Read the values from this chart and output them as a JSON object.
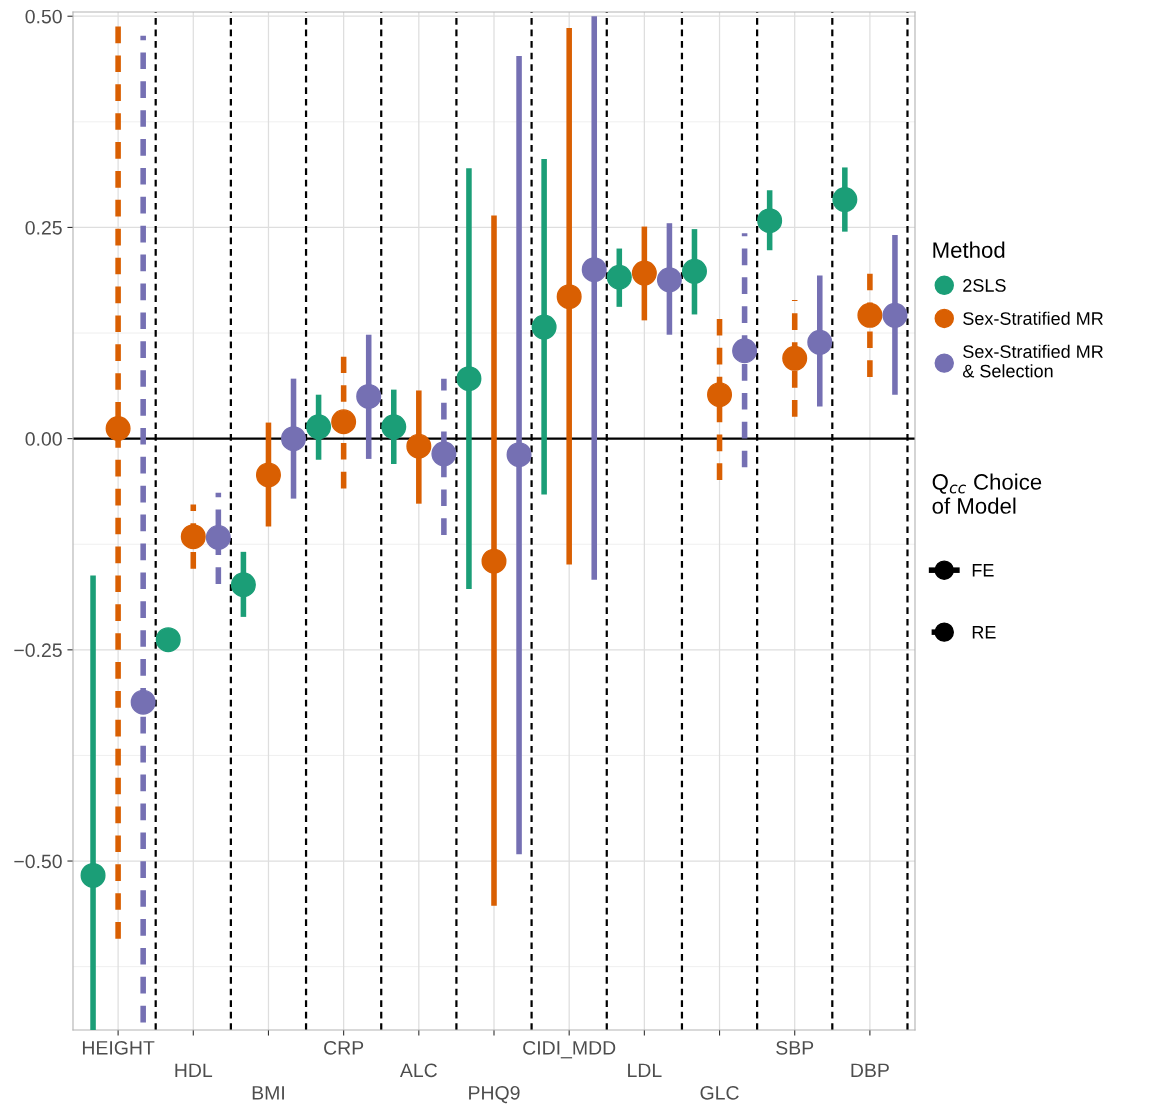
{
  "chart_data": {
    "type": "scatter",
    "categories": [
      "HEIGHT",
      "HDL",
      "BMI",
      "CRP",
      "ALC",
      "PHQ9",
      "CIDI_MDD",
      "LDL",
      "GLC",
      "SBP",
      "DBP"
    ],
    "ylim": [
      -0.7,
      0.505
    ],
    "yticks": [
      {
        "value": -0.5,
        "label": "−0.50"
      },
      {
        "value": -0.25,
        "label": "−0.25"
      },
      {
        "value": 0,
        "label": "0.00"
      },
      {
        "value": 0.25,
        "label": "0.25"
      },
      {
        "value": 0.5,
        "label": "0.50"
      }
    ],
    "grid": true,
    "legend": "right",
    "legend_title": "Method",
    "marker": "circle",
    "series": [
      {
        "name": "2SLS",
        "color": "#1b9e77",
        "values": [
          -0.517,
          -0.238,
          -0.173,
          0.014,
          0.014,
          0.071,
          0.132,
          0.191,
          0.198,
          0.258,
          0.283
        ],
        "errors": [
          [
            -0.7,
            -0.162
          ],
          null,
          [
            -0.211,
            -0.134
          ],
          [
            -0.025,
            0.052
          ],
          [
            -0.03,
            0.058
          ],
          [
            -0.178,
            0.32
          ],
          [
            -0.066,
            0.331
          ],
          [
            0.156,
            0.225
          ],
          [
            0.147,
            0.248
          ],
          [
            0.223,
            0.294
          ],
          [
            0.245,
            0.321
          ]
        ],
        "line_style": [
          "solid",
          "solid",
          "solid",
          "solid",
          "solid",
          "solid",
          "solid",
          "solid",
          "solid",
          "solid",
          "solid"
        ]
      },
      {
        "name": "Sex-Stratified MR",
        "color": "#d95f02",
        "values": [
          0.012,
          -0.116,
          -0.043,
          0.02,
          -0.009,
          -0.145,
          0.168,
          0.196,
          0.052,
          0.095,
          0.146
        ],
        "errors": [
          [
            -0.592,
            0.5
          ],
          [
            -0.154,
            -0.078
          ],
          [
            -0.104,
            0.019
          ],
          [
            -0.059,
            0.097
          ],
          [
            -0.077,
            0.057
          ],
          [
            -0.553,
            0.264
          ],
          [
            -0.149,
            0.486
          ],
          [
            0.14,
            0.251
          ],
          [
            -0.049,
            0.153
          ],
          [
            0.026,
            0.164
          ],
          [
            0.073,
            0.209
          ]
        ],
        "line_style": [
          "dashed",
          "dashed",
          "solid",
          "dashed",
          "solid",
          "solid",
          "solid",
          "solid",
          "dashed",
          "dashed",
          "dashed"
        ]
      },
      {
        "name": "Sex-Stratified MR\n& Selection",
        "color": "#7570b3",
        "values": [
          -0.312,
          -0.117,
          0.0,
          0.05,
          -0.018,
          -0.019,
          0.2,
          0.188,
          0.104,
          0.114,
          0.146
        ],
        "errors": [
          [
            -0.691,
            0.477
          ],
          [
            -0.172,
            -0.064
          ],
          [
            -0.071,
            0.071
          ],
          [
            -0.024,
            0.123
          ],
          [
            -0.114,
            0.071
          ],
          [
            -0.492,
            0.453
          ],
          [
            -0.167,
            0.5
          ],
          [
            0.123,
            0.255
          ],
          [
            -0.034,
            0.243
          ],
          [
            0.038,
            0.193
          ],
          [
            0.052,
            0.241
          ]
        ],
        "line_style": [
          "dashed",
          "dashed",
          "solid",
          "solid",
          "dashed",
          "solid",
          "solid",
          "solid",
          "dashed",
          "solid",
          "solid"
        ]
      }
    ],
    "annotations": [
      "Q$_{cc}$ Choice\nof Model",
      "FE",
      "RE"
    ],
    "ref_lines": [
      {
        "axis": "y",
        "value": 0,
        "color": "#000000",
        "line_style": "solid"
      }
    ]
  }
}
